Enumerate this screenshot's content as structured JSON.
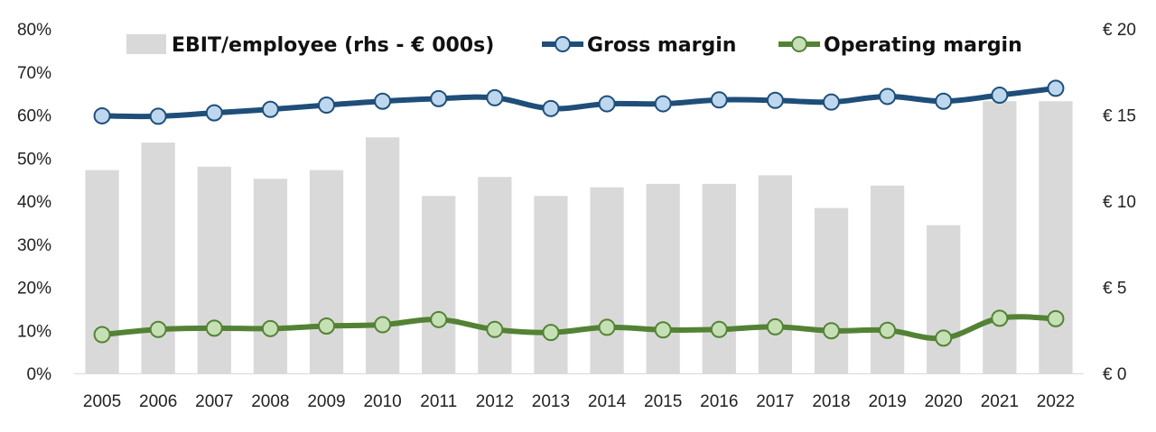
{
  "chart_data": {
    "type": "bar+line",
    "categories": [
      "2005",
      "2006",
      "2007",
      "2008",
      "2009",
      "2010",
      "2011",
      "2012",
      "2013",
      "2014",
      "2015",
      "2016",
      "2017",
      "2018",
      "2019",
      "2020",
      "2021",
      "2022"
    ],
    "series": [
      {
        "name": "EBIT/employee (rhs - € 000s)",
        "type": "bar",
        "axis": "right",
        "color": "#d9d9d9",
        "values": [
          11.8,
          13.4,
          12.0,
          11.3,
          11.8,
          13.7,
          10.3,
          11.4,
          10.3,
          10.8,
          11.0,
          11.0,
          11.5,
          9.6,
          10.9,
          8.6,
          15.8,
          15.8
        ]
      },
      {
        "name": "Gross margin",
        "type": "line",
        "axis": "left",
        "color": "#1f4e79",
        "marker_fill": "#bdd7ee",
        "values": [
          59.8,
          59.7,
          60.5,
          61.3,
          62.3,
          63.2,
          63.8,
          64.0,
          61.5,
          62.6,
          62.6,
          63.5,
          63.4,
          63.0,
          64.3,
          63.2,
          64.6,
          66.2
        ]
      },
      {
        "name": "Operating margin",
        "type": "line",
        "axis": "left",
        "color": "#548235",
        "marker_fill": "#c5e0b4",
        "values": [
          9.0,
          10.2,
          10.5,
          10.4,
          11.0,
          11.3,
          12.5,
          10.2,
          9.5,
          10.7,
          10.1,
          10.2,
          10.8,
          9.9,
          10.0,
          8.2,
          12.8,
          12.7
        ]
      }
    ],
    "y_left": {
      "ylim": [
        0,
        80
      ],
      "ticks": [
        "0%",
        "10%",
        "20%",
        "30%",
        "40%",
        "50%",
        "60%",
        "70%",
        "80%"
      ]
    },
    "y_right": {
      "ylim": [
        0,
        20
      ],
      "ticks": [
        "€ 0",
        "€ 5",
        "€ 10",
        "€ 15",
        "€ 20"
      ]
    },
    "grid": false,
    "legend_position": "top"
  }
}
